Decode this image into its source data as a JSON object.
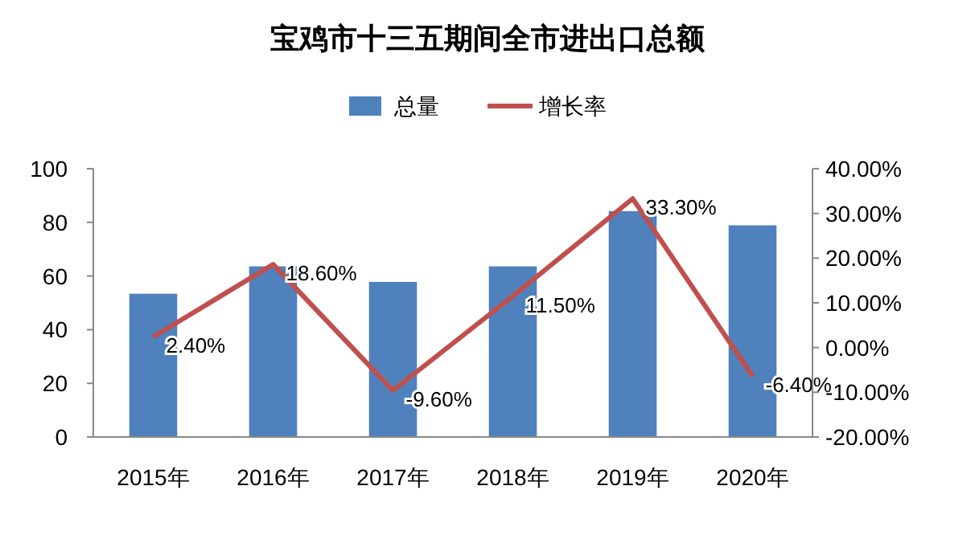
{
  "chart_data": {
    "type": "bar",
    "title": "宝鸡市十三五期间全市进出口总额",
    "categories": [
      "2015年",
      "2016年",
      "2017年",
      "2018年",
      "2019年",
      "2020年"
    ],
    "series": [
      {
        "name": "总量",
        "color": "#4f81bd",
        "values": [
          53.4,
          63.6,
          57.8,
          63.6,
          84.2,
          78.9
        ]
      },
      {
        "name": "增长率",
        "type": "line",
        "axis": "y2",
        "color": "#c0504d",
        "values": [
          2.4,
          18.6,
          -9.6,
          11.5,
          33.3,
          -6.4
        ],
        "value_labels": [
          "2.40%",
          "18.60%",
          "-9.60%",
          "11.50%",
          "33.30%",
          "-6.40%"
        ]
      }
    ],
    "ylim": [
      0,
      100
    ],
    "yticks": [
      0,
      20,
      40,
      60,
      80,
      100
    ],
    "y2lim": [
      -20,
      40
    ],
    "y2ticks": [
      {
        "value": -20,
        "label": "-20.00%"
      },
      {
        "value": -10,
        "label": "-10.00%"
      },
      {
        "value": 0,
        "label": "0.00%"
      },
      {
        "value": 10,
        "label": "10.00%"
      },
      {
        "value": 20,
        "label": "20.00%"
      },
      {
        "value": 30,
        "label": "30.00%"
      },
      {
        "value": 40,
        "label": "40.00%"
      }
    ],
    "legend": "top",
    "grid": false,
    "marker": "none",
    "line_style": "solid"
  }
}
